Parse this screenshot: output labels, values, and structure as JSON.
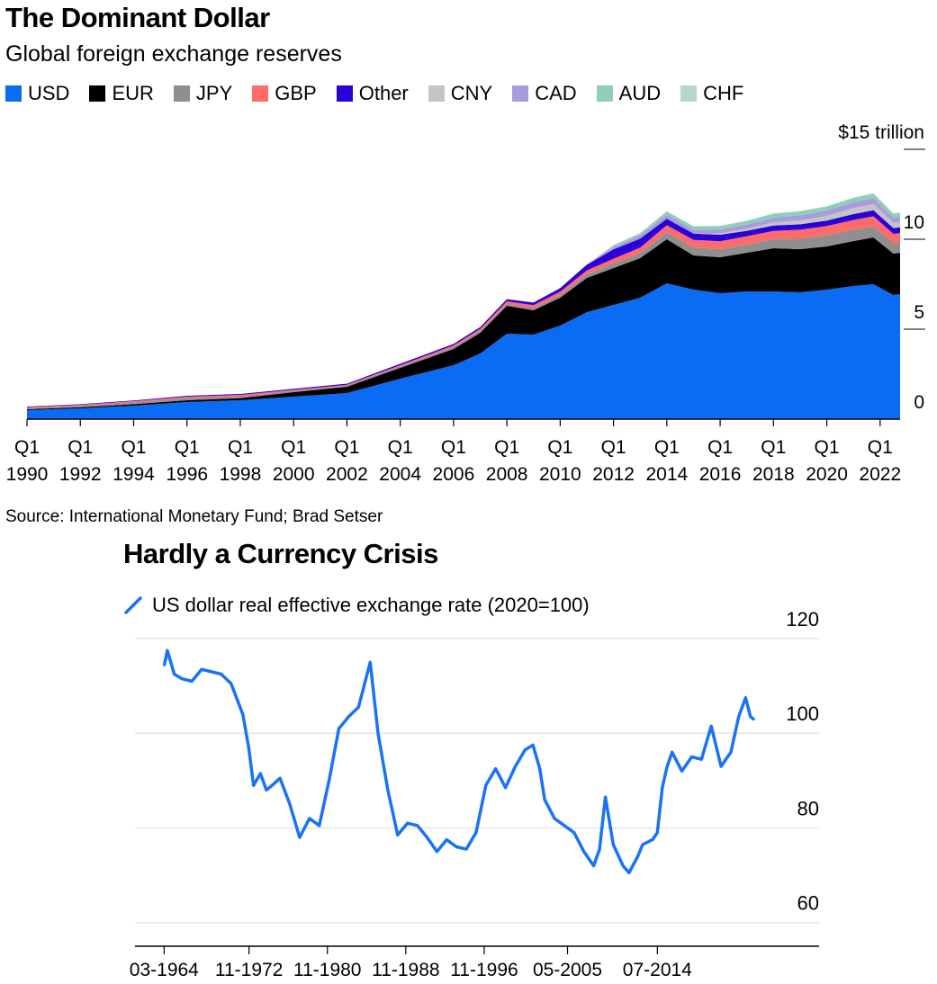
{
  "colors": {
    "USD": "#0a6cf5",
    "EUR": "#000000",
    "JPY": "#8f8f8f",
    "GBP": "#ff6b6b",
    "Other": "#2a00d9",
    "CNY": "#c4c4c4",
    "CAD": "#a99bdd",
    "AUD": "#8dcfb8",
    "CHF": "#b6d6cf",
    "line": "#1a73f5",
    "grid": "#e6e6e6",
    "axis": "#000000"
  },
  "source": "Source: International Monetary Fund; Brad Setser",
  "chart_data": [
    {
      "type": "area",
      "title": "The Dominant Dollar",
      "subtitle": "Global foreign exchange reserves",
      "stacked": true,
      "ylim": [
        0,
        15
      ],
      "yticks": [
        {
          "value": 15,
          "label": "$15 trillion"
        },
        {
          "value": 10,
          "label": "10"
        },
        {
          "value": 5,
          "label": "5"
        },
        {
          "value": 0,
          "label": "0"
        }
      ],
      "xlim": [
        1990.0,
        2022.75
      ],
      "xticks": [
        {
          "value": 1990,
          "q": "Q1",
          "year": "1990"
        },
        {
          "value": 1992,
          "q": "Q1",
          "year": "1992"
        },
        {
          "value": 1994,
          "q": "Q1",
          "year": "1994"
        },
        {
          "value": 1996,
          "q": "Q1",
          "year": "1996"
        },
        {
          "value": 1998,
          "q": "Q1",
          "year": "1998"
        },
        {
          "value": 2000,
          "q": "Q1",
          "year": "2000"
        },
        {
          "value": 2002,
          "q": "Q1",
          "year": "2002"
        },
        {
          "value": 2004,
          "q": "Q1",
          "year": "2004"
        },
        {
          "value": 2006,
          "q": "Q1",
          "year": "2006"
        },
        {
          "value": 2008,
          "q": "Q1",
          "year": "2008"
        },
        {
          "value": 2010,
          "q": "Q1",
          "year": "2010"
        },
        {
          "value": 2012,
          "q": "Q1",
          "year": "2012"
        },
        {
          "value": 2014,
          "q": "Q1",
          "year": "2014"
        },
        {
          "value": 2016,
          "q": "Q1",
          "year": "2016"
        },
        {
          "value": 2018,
          "q": "Q1",
          "year": "2018"
        },
        {
          "value": 2020,
          "q": "Q1",
          "year": "2020"
        },
        {
          "value": 2022,
          "q": "Q1",
          "year": "2022"
        }
      ],
      "x": [
        1990,
        1992,
        1994,
        1996,
        1998,
        2000,
        2002,
        2004,
        2006,
        2007,
        2008,
        2009,
        2010,
        2011,
        2012,
        2013,
        2014,
        2015,
        2016,
        2017,
        2018,
        2019,
        2020,
        2021,
        2021.75,
        2022.5,
        2022.75
      ],
      "series": [
        {
          "name": "USD",
          "values": [
            0.5,
            0.6,
            0.75,
            0.95,
            1.05,
            1.25,
            1.45,
            2.25,
            3.0,
            3.65,
            4.75,
            4.7,
            5.2,
            5.95,
            6.35,
            6.75,
            7.55,
            7.2,
            7.0,
            7.1,
            7.1,
            7.05,
            7.2,
            7.4,
            7.5,
            6.9,
            6.95
          ]
        },
        {
          "name": "EUR",
          "values": [
            0.05,
            0.06,
            0.08,
            0.1,
            0.12,
            0.25,
            0.35,
            0.6,
            0.9,
            1.15,
            1.55,
            1.35,
            1.55,
            1.9,
            2.05,
            2.2,
            2.45,
            1.9,
            2.0,
            2.15,
            2.4,
            2.4,
            2.4,
            2.5,
            2.6,
            2.3,
            2.3
          ]
        },
        {
          "name": "JPY",
          "values": [
            0.07,
            0.08,
            0.1,
            0.12,
            0.08,
            0.07,
            0.06,
            0.08,
            0.1,
            0.1,
            0.1,
            0.12,
            0.14,
            0.2,
            0.26,
            0.28,
            0.4,
            0.45,
            0.45,
            0.46,
            0.5,
            0.58,
            0.62,
            0.62,
            0.62,
            0.58,
            0.58
          ]
        },
        {
          "name": "GBP",
          "values": [
            0.05,
            0.06,
            0.07,
            0.08,
            0.1,
            0.06,
            0.05,
            0.07,
            0.1,
            0.12,
            0.15,
            0.17,
            0.2,
            0.22,
            0.26,
            0.3,
            0.38,
            0.42,
            0.44,
            0.46,
            0.46,
            0.5,
            0.52,
            0.55,
            0.56,
            0.52,
            0.52
          ]
        },
        {
          "name": "Other",
          "values": [
            0.03,
            0.03,
            0.04,
            0.05,
            0.05,
            0.06,
            0.06,
            0.08,
            0.08,
            0.1,
            0.12,
            0.14,
            0.2,
            0.32,
            0.52,
            0.5,
            0.36,
            0.34,
            0.36,
            0.3,
            0.3,
            0.3,
            0.3,
            0.33,
            0.33,
            0.32,
            0.32
          ]
        },
        {
          "name": "CNY",
          "values": [
            0,
            0,
            0,
            0,
            0,
            0,
            0,
            0,
            0,
            0,
            0,
            0,
            0,
            0,
            0,
            0,
            0,
            0,
            0.08,
            0.12,
            0.18,
            0.22,
            0.26,
            0.34,
            0.36,
            0.3,
            0.3
          ]
        },
        {
          "name": "CAD",
          "values": [
            0,
            0,
            0,
            0,
            0,
            0,
            0,
            0,
            0,
            0,
            0,
            0,
            0,
            0,
            0.12,
            0.18,
            0.22,
            0.22,
            0.22,
            0.23,
            0.26,
            0.28,
            0.3,
            0.32,
            0.32,
            0.28,
            0.28
          ]
        },
        {
          "name": "AUD",
          "values": [
            0,
            0,
            0,
            0,
            0,
            0,
            0,
            0,
            0,
            0,
            0,
            0,
            0,
            0,
            0.1,
            0.12,
            0.18,
            0.18,
            0.18,
            0.2,
            0.22,
            0.22,
            0.22,
            0.24,
            0.25,
            0.22,
            0.22
          ]
        },
        {
          "name": "CHF",
          "values": [
            0,
            0,
            0,
            0,
            0,
            0,
            0,
            0,
            0,
            0,
            0,
            0,
            0,
            0,
            0.02,
            0.02,
            0.02,
            0.02,
            0.02,
            0.02,
            0.02,
            0.02,
            0.02,
            0.02,
            0.02,
            0.02,
            0.02
          ]
        }
      ]
    },
    {
      "type": "line",
      "title": "Hardly a Currency Crisis",
      "legend": "US dollar real effective exchange rate (2020=100)",
      "ylim": [
        55,
        120
      ],
      "yticks": [
        {
          "value": 120,
          "label": "120"
        },
        {
          "value": 100,
          "label": "100"
        },
        {
          "value": 80,
          "label": "80"
        },
        {
          "value": 60,
          "label": "60"
        }
      ],
      "xlim": [
        1961.2,
        2031.0
      ],
      "xticks": [
        {
          "value": 1964.17,
          "label": "03-1964"
        },
        {
          "value": 1972.83,
          "label": "11-1972"
        },
        {
          "value": 1980.83,
          "label": "11-1980"
        },
        {
          "value": 1988.83,
          "label": "11-1988"
        },
        {
          "value": 1996.83,
          "label": "11-1996"
        },
        {
          "value": 2005.33,
          "label": "05-2005"
        },
        {
          "value": 2014.5,
          "label": "07-2014"
        }
      ],
      "series": [
        {
          "name": "US dollar real effective exchange rate (2020=100)",
          "x": [
            1964.2,
            1964.5,
            1965.2,
            1966,
            1967,
            1968,
            1969,
            1970,
            1971,
            1972.2,
            1972.8,
            1973.3,
            1974,
            1974.6,
            1975.2,
            1976,
            1977,
            1978,
            1979,
            1980,
            1981,
            1982,
            1983,
            1984,
            1985.2,
            1986,
            1987,
            1988,
            1989,
            1990,
            1991,
            1992,
            1993,
            1994,
            1995,
            1996,
            1997,
            1998,
            1999,
            2000,
            2001,
            2001.8,
            2002.5,
            2003,
            2004,
            2005,
            2006,
            2007,
            2008,
            2008.6,
            2009.2,
            2010,
            2011,
            2011.6,
            2012.5,
            2013,
            2014,
            2014.5,
            2015,
            2015.5,
            2016,
            2017,
            2018,
            2019,
            2020,
            2021,
            2022,
            2022.8,
            2023.5,
            2024,
            2024.3
          ],
          "values": [
            114.5,
            117.5,
            112.5,
            111.5,
            111.0,
            113.5,
            113.0,
            112.5,
            110.5,
            104.0,
            97.0,
            89.0,
            91.5,
            88.0,
            89.0,
            90.5,
            85.0,
            78.0,
            82.0,
            80.5,
            90.0,
            101.0,
            103.5,
            105.5,
            115.0,
            100.0,
            88.0,
            78.5,
            81.0,
            80.5,
            78.0,
            75.0,
            77.5,
            76.0,
            75.5,
            79.0,
            89.0,
            92.5,
            88.5,
            93.0,
            96.5,
            97.5,
            92.5,
            86.0,
            82.0,
            80.5,
            79.0,
            75.0,
            72.0,
            75.5,
            86.5,
            76.5,
            72.0,
            70.5,
            74.0,
            76.5,
            77.5,
            79.0,
            88.5,
            93.0,
            96.0,
            92.0,
            95.0,
            94.5,
            101.5,
            93.0,
            96.0,
            103.5,
            107.5,
            103.5,
            103.0
          ]
        }
      ]
    }
  ]
}
